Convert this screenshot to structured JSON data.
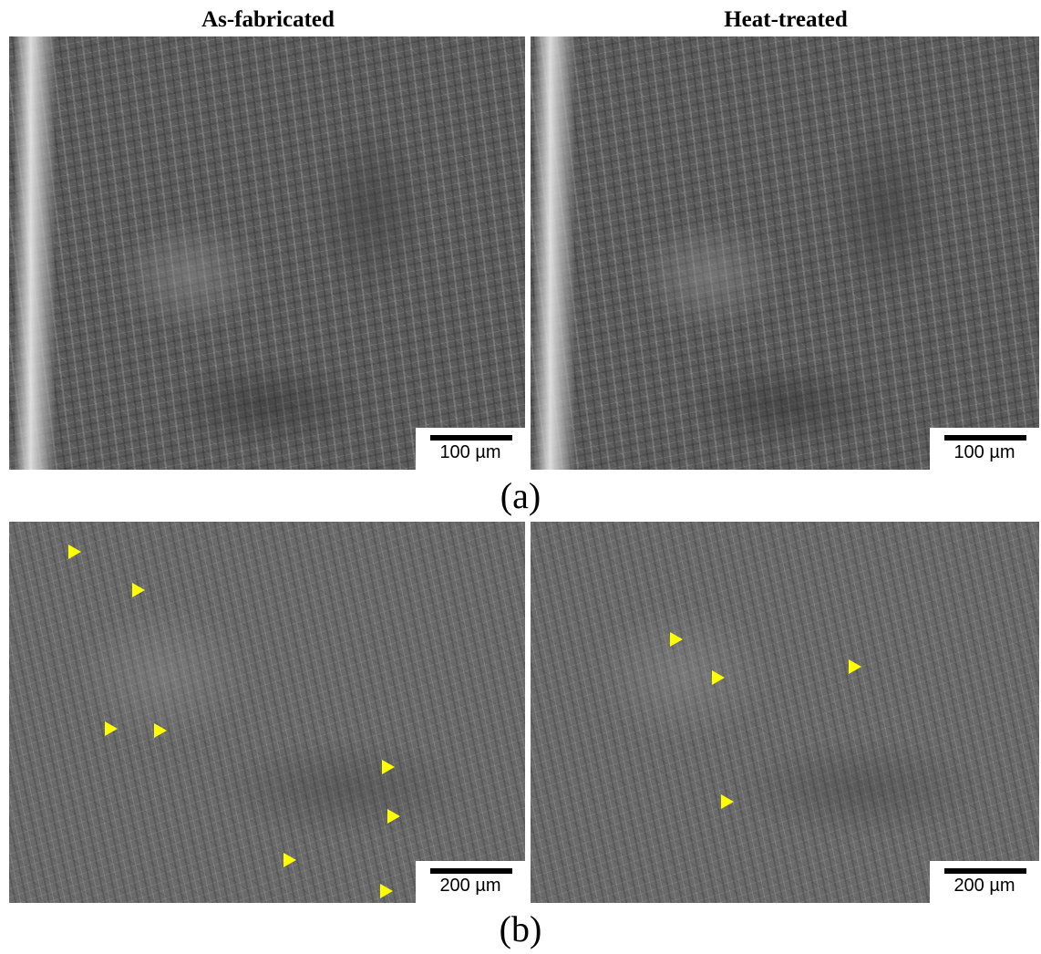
{
  "columns": {
    "left_title": "As-fabricated",
    "right_title": "Heat-treated"
  },
  "panels": {
    "a_label": "(a)",
    "b_label": "(b)"
  },
  "scalebars": {
    "a_left": "100 µm",
    "a_right": "100 µm",
    "b_left": "200 µm",
    "b_right": "200 µm"
  },
  "colors": {
    "marker": "#ffff00",
    "background": "#ffffff"
  },
  "image_content": "SEM fracture surface micrographs with yellow triangle markers on panel (b)"
}
